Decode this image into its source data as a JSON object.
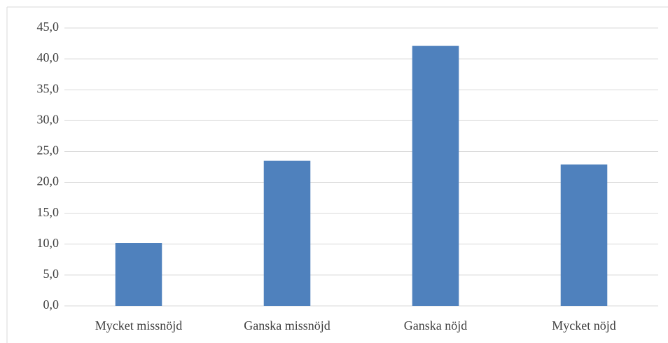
{
  "chart_data": {
    "type": "bar",
    "categories": [
      "Mycket missnöjd",
      "Ganska missnöjd",
      "Ganska nöjd",
      "Mycket nöjd"
    ],
    "values": [
      10.2,
      23.5,
      42.1,
      22.9
    ],
    "color": "#4f81bd",
    "ylim": [
      0,
      45
    ],
    "yticks": [
      {
        "value": 0,
        "label": "0,0"
      },
      {
        "value": 5,
        "label": "5,0"
      },
      {
        "value": 10,
        "label": "10,0"
      },
      {
        "value": 15,
        "label": "15,0"
      },
      {
        "value": 20,
        "label": "20,0"
      },
      {
        "value": 25,
        "label": "25,0"
      },
      {
        "value": 30,
        "label": "30,0"
      },
      {
        "value": 35,
        "label": "35,0"
      },
      {
        "value": 40,
        "label": "40,0"
      },
      {
        "value": 45,
        "label": "45,0"
      }
    ],
    "grid": true
  }
}
